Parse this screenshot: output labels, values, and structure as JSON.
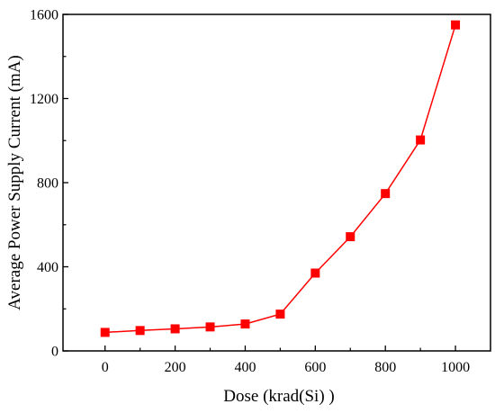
{
  "chart_data": {
    "type": "line",
    "title": "",
    "xlabel": "Dose (krad(Si) )",
    "ylabel": "Average Power Supply Current (mA)",
    "xlim": [
      -120,
      1100
    ],
    "ylim": [
      0,
      1600
    ],
    "xticks": [
      0,
      200,
      400,
      600,
      800,
      1000
    ],
    "yticks": [
      0,
      400,
      800,
      1200,
      1600
    ],
    "x_minor_ticks": [
      100,
      300,
      500,
      700,
      900
    ],
    "y_minor_ticks": [
      200,
      600,
      1000,
      1400
    ],
    "grid": false,
    "legend": "none",
    "colors": {
      "series": "#ff0000",
      "axis": "#000000",
      "background": "#ffffff"
    },
    "marker": "square",
    "x": [
      0,
      100,
      200,
      300,
      400,
      500,
      600,
      700,
      800,
      900,
      1000
    ],
    "series": [
      {
        "values": [
          88,
          97,
          105,
          114,
          128,
          175,
          370,
          543,
          748,
          1003,
          1550
        ]
      }
    ]
  }
}
